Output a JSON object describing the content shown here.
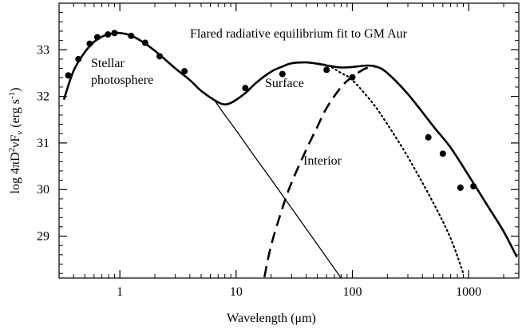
{
  "chart_data": {
    "type": "line",
    "title": "Flared radiative equilibrium fit to GM Aur",
    "xlabel": "Wavelength (μm)",
    "ylabel_parts": {
      "main": "log 4πD",
      "sup1": "2",
      "mid": "νF",
      "sub": "ν",
      "unit_open": " (erg s",
      "sup2": "-1",
      "unit_close": ")"
    },
    "x_scale": "log",
    "xlim": [
      0.3,
      2700
    ],
    "ylim": [
      28.1,
      34.0
    ],
    "x_ticks": [
      {
        "value": 1,
        "label": "1"
      },
      {
        "value": 10,
        "label": "10"
      },
      {
        "value": 100,
        "label": "100"
      },
      {
        "value": 1000,
        "label": "1000"
      }
    ],
    "x_minor_ticks": [
      0.4,
      0.5,
      0.6,
      0.7,
      0.8,
      0.9,
      2,
      3,
      4,
      5,
      6,
      7,
      8,
      9,
      20,
      30,
      40,
      50,
      60,
      70,
      80,
      90,
      200,
      300,
      400,
      500,
      600,
      700,
      800,
      900,
      2000
    ],
    "y_ticks": [
      {
        "value": 29,
        "label": "29"
      },
      {
        "value": 30,
        "label": "30"
      },
      {
        "value": 31,
        "label": "31"
      },
      {
        "value": 32,
        "label": "32"
      },
      {
        "value": 33,
        "label": "33"
      }
    ],
    "y_minor_step": 0.2,
    "series": [
      {
        "key": "total",
        "style": "solid-thick",
        "points": [
          [
            0.33,
            31.93
          ],
          [
            0.4,
            32.55
          ],
          [
            0.5,
            32.95
          ],
          [
            0.6,
            33.17
          ],
          [
            0.7,
            33.28
          ],
          [
            0.8,
            33.33
          ],
          [
            0.9,
            33.36
          ],
          [
            1.0,
            33.36
          ],
          [
            1.2,
            33.32
          ],
          [
            1.5,
            33.2
          ],
          [
            2,
            32.98
          ],
          [
            3,
            32.6
          ],
          [
            4,
            32.35
          ],
          [
            5,
            32.12
          ],
          [
            6.5,
            31.92
          ],
          [
            7.5,
            31.84
          ],
          [
            8.3,
            31.83
          ],
          [
            9.5,
            31.89
          ],
          [
            12,
            32.07
          ],
          [
            15,
            32.3
          ],
          [
            20,
            32.53
          ],
          [
            25,
            32.64
          ],
          [
            30,
            32.71
          ],
          [
            40,
            32.73
          ],
          [
            50,
            32.7
          ],
          [
            65,
            32.65
          ],
          [
            80,
            32.62
          ],
          [
            100,
            32.63
          ],
          [
            130,
            32.66
          ],
          [
            160,
            32.64
          ],
          [
            200,
            32.5
          ],
          [
            300,
            32.05
          ],
          [
            500,
            31.35
          ],
          [
            700,
            30.9
          ],
          [
            1000,
            30.3
          ],
          [
            1500,
            29.6
          ],
          [
            2000,
            29.1
          ],
          [
            2600,
            28.55
          ]
        ]
      },
      {
        "key": "stellar-photosphere",
        "style": "solid-thin",
        "points": [
          [
            6.5,
            31.92
          ],
          [
            8,
            31.6
          ],
          [
            10,
            31.27
          ],
          [
            15,
            30.65
          ],
          [
            20,
            30.22
          ],
          [
            30,
            29.6
          ],
          [
            50,
            28.82
          ],
          [
            80,
            28.1
          ]
        ]
      },
      {
        "key": "surface",
        "style": "dotted",
        "points": [
          [
            40,
            32.73
          ],
          [
            60,
            32.67
          ],
          [
            80,
            32.5
          ],
          [
            100,
            32.35
          ],
          [
            150,
            31.85
          ],
          [
            200,
            31.4
          ],
          [
            300,
            30.7
          ],
          [
            500,
            29.7
          ],
          [
            700,
            28.95
          ],
          [
            900,
            28.2
          ]
        ]
      },
      {
        "key": "interior",
        "style": "dashed",
        "points": [
          [
            17.5,
            28.12
          ],
          [
            20,
            28.8
          ],
          [
            25,
            29.6
          ],
          [
            30,
            30.15
          ],
          [
            40,
            30.85
          ],
          [
            50,
            31.35
          ],
          [
            60,
            31.75
          ],
          [
            80,
            32.2
          ],
          [
            100,
            32.42
          ],
          [
            130,
            32.6
          ],
          [
            160,
            32.64
          ]
        ]
      }
    ],
    "observations": [
      [
        0.36,
        32.45
      ],
      [
        0.44,
        32.8
      ],
      [
        0.55,
        33.13
      ],
      [
        0.64,
        33.27
      ],
      [
        0.79,
        33.33
      ],
      [
        0.9,
        33.36
      ],
      [
        1.25,
        33.3
      ],
      [
        1.65,
        33.15
      ],
      [
        2.2,
        32.86
      ],
      [
        3.6,
        32.54
      ],
      [
        12,
        32.18
      ],
      [
        25,
        32.48
      ],
      [
        60,
        32.57
      ],
      [
        100,
        32.41
      ],
      [
        450,
        31.12
      ],
      [
        600,
        30.77
      ],
      [
        850,
        30.04
      ],
      [
        1100,
        30.07
      ]
    ],
    "annotations": [
      {
        "key": "stellar",
        "lines": [
          "Stellar",
          "photosphere"
        ]
      },
      {
        "key": "surface",
        "lines": [
          "Surface"
        ]
      },
      {
        "key": "interior",
        "lines": [
          "Interior"
        ]
      }
    ]
  }
}
